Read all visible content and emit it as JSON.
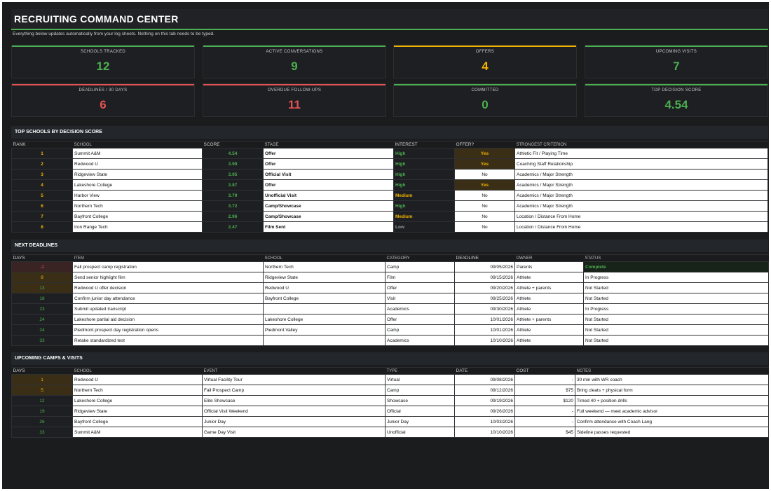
{
  "header": {
    "title": "RECRUITING COMMAND CENTER",
    "subtitle": "Everything below updates automatically from your log sheets. Nothing on this tab needs to be typed."
  },
  "kpis": [
    {
      "label": "SCHOOLS TRACKED",
      "value": "12",
      "color": "#4caf50"
    },
    {
      "label": "ACTIVE CONVERSATIONS",
      "value": "9",
      "color": "#4caf50"
    },
    {
      "label": "OFFERS",
      "value": "4",
      "color": "#f0b400"
    },
    {
      "label": "UPCOMING VISITS",
      "value": "7",
      "color": "#4caf50"
    },
    {
      "label": "DEADLINES / 30 DAYS",
      "value": "6",
      "color": "#e45252"
    },
    {
      "label": "OVERDUE FOLLOW-UPS",
      "value": "11",
      "color": "#e45252"
    },
    {
      "label": "COMMITTED",
      "value": "0",
      "color": "#4caf50"
    },
    {
      "label": "TOP DECISION SCORE",
      "value": "4.54",
      "color": "#4caf50"
    }
  ],
  "top_schools": {
    "title": "TOP SCHOOLS BY DECISION SCORE",
    "headers": [
      "RANK",
      "SCHOOL",
      "SCORE",
      "STAGE",
      "INTEREST",
      "OFFER?",
      "STRONGEST CRITERION"
    ],
    "rows": [
      {
        "rank": "1",
        "school": "Summit A&M",
        "score": "4.54",
        "stage": "Offer",
        "interest": "High",
        "offer": "Yes",
        "criterion": "Athletic Fit / Playing Time"
      },
      {
        "rank": "2",
        "school": "Redwood U",
        "score": "3.99",
        "stage": "Offer",
        "interest": "High",
        "offer": "Yes",
        "criterion": "Coaching Staff Relationship"
      },
      {
        "rank": "3",
        "school": "Ridgeview State",
        "score": "3.95",
        "stage": "Official Visit",
        "interest": "High",
        "offer": "No",
        "criterion": "Academics / Major Strength"
      },
      {
        "rank": "4",
        "school": "Lakeshore College",
        "score": "3.87",
        "stage": "Offer",
        "interest": "High",
        "offer": "Yes",
        "criterion": "Academics / Major Strength"
      },
      {
        "rank": "5",
        "school": "Harbor View",
        "score": "3.79",
        "stage": "Unofficial Visit",
        "interest": "Medium",
        "offer": "No",
        "criterion": "Academics / Major Strength"
      },
      {
        "rank": "6",
        "school": "Northern Tech",
        "score": "3.72",
        "stage": "Camp/Showcase",
        "interest": "High",
        "offer": "No",
        "criterion": "Academics / Major Strength"
      },
      {
        "rank": "7",
        "school": "Bayfront College",
        "score": "2.96",
        "stage": "Camp/Showcase",
        "interest": "Medium",
        "offer": "No",
        "criterion": "Location / Distance From Home"
      },
      {
        "rank": "8",
        "school": "Iron Range Tech",
        "score": "2.47",
        "stage": "Film Sent",
        "interest": "Low",
        "offer": "No",
        "criterion": "Location / Distance From Home"
      }
    ]
  },
  "deadlines": {
    "title": "NEXT DEADLINES",
    "headers": [
      "DAYS",
      "ITEM",
      "SCHOOL",
      "CATEGORY",
      "DEADLINE",
      "OWNER",
      "STATUS"
    ],
    "rows": [
      {
        "days": "-2",
        "item": "Fall prospect camp registration",
        "school": "Northern Tech",
        "category": "Camp",
        "deadline": "09/05/2026",
        "owner": "Parents",
        "status": "Complete"
      },
      {
        "days": "8",
        "item": "Send senior highlight film",
        "school": "Ridgeview State",
        "category": "Film",
        "deadline": "09/15/2026",
        "owner": "Athlete",
        "status": "In Progress"
      },
      {
        "days": "13",
        "item": "Redwood U offer decision",
        "school": "Redwood U",
        "category": "Offer",
        "deadline": "09/20/2026",
        "owner": "Athlete + parents",
        "status": "Not Started"
      },
      {
        "days": "18",
        "item": "Confirm junior day attendance",
        "school": "Bayfront College",
        "category": "Visit",
        "deadline": "09/25/2026",
        "owner": "Athlete",
        "status": "Not Started"
      },
      {
        "days": "23",
        "item": "Submit updated transcript",
        "school": "",
        "category": "Academics",
        "deadline": "09/30/2026",
        "owner": "Athlete",
        "status": "In Progress"
      },
      {
        "days": "24",
        "item": "Lakeshore partial aid decision",
        "school": "Lakeshore College",
        "category": "Offer",
        "deadline": "10/01/2026",
        "owner": "Athlete + parents",
        "status": "Not Started"
      },
      {
        "days": "24",
        "item": "Piedmont prospect day registration opens",
        "school": "Piedmont Valley",
        "category": "Camp",
        "deadline": "10/01/2026",
        "owner": "Athlete",
        "status": "Not Started"
      },
      {
        "days": "33",
        "item": "Retake standardized test",
        "school": "",
        "category": "Academics",
        "deadline": "10/10/2026",
        "owner": "Athlete",
        "status": "Not Started"
      }
    ]
  },
  "camps": {
    "title": "UPCOMING CAMPS & VISITS",
    "headers": [
      "DAYS",
      "SCHOOL",
      "EVENT",
      "TYPE",
      "DATE",
      "COST",
      "NOTES"
    ],
    "rows": [
      {
        "days": "1",
        "school": "Redwood U",
        "event": "Virtual Facility Tour",
        "type": "Virtual",
        "date": "09/08/2026",
        "cost": "-",
        "notes": "30 min with WR coach"
      },
      {
        "days": "5",
        "school": "Northern Tech",
        "event": "Fall Prospect Camp",
        "type": "Camp",
        "date": "09/12/2026",
        "cost": "$75",
        "notes": "Bring cleats + physical form"
      },
      {
        "days": "12",
        "school": "Lakeshore College",
        "event": "Elite Showcase",
        "type": "Showcase",
        "date": "09/19/2026",
        "cost": "$120",
        "notes": "Timed 40 + position drills"
      },
      {
        "days": "19",
        "school": "Ridgeview State",
        "event": "Official Visit Weekend",
        "type": "Official",
        "date": "09/26/2026",
        "cost": "-",
        "notes": "Full weekend — meet academic advisor"
      },
      {
        "days": "26",
        "school": "Bayfront College",
        "event": "Junior Day",
        "type": "Junior Day",
        "date": "10/03/2026",
        "cost": "-",
        "notes": "Confirm attendance with Coach Lang"
      },
      {
        "days": "33",
        "school": "Summit A&M",
        "event": "Game Day Visit",
        "type": "Unofficial",
        "date": "10/10/2026",
        "cost": "$45",
        "notes": "Sideline passes requested"
      }
    ]
  }
}
